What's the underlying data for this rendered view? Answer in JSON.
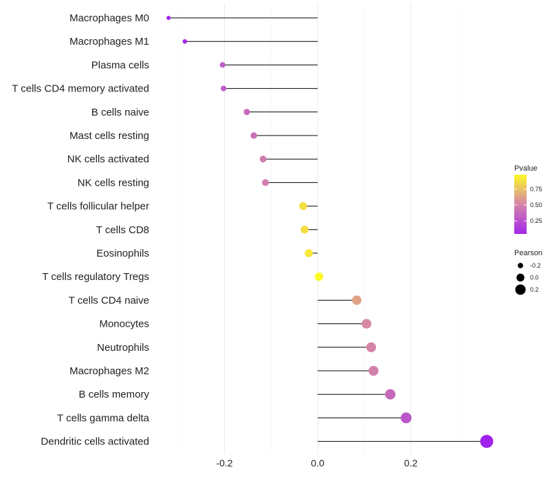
{
  "chart_data": {
    "type": "lollipop",
    "title": "",
    "xlabel": "",
    "ylabel": "",
    "xlim": [
      -0.34,
      0.38
    ],
    "xticks": [
      -0.2,
      0.0,
      0.2
    ],
    "xtick_labels": [
      "-0.2",
      "0.0",
      "0.2"
    ],
    "categories": [
      "Macrophages M0",
      "Macrophages M1",
      "Plasma cells",
      "T cells CD4 memory activated",
      "B cells naive",
      "Mast cells resting",
      "NK cells activated",
      "NK cells resting",
      "T cells follicular helper",
      "T cells CD8",
      "Eosinophils",
      "T cells regulatory  Tregs ",
      "T cells CD4 naive",
      "Monocytes",
      "Neutrophils",
      "Macrophages M2",
      "B cells memory",
      "T cells gamma delta",
      "Dendritic cells activated"
    ],
    "pearson": [
      -0.32,
      -0.285,
      -0.204,
      -0.202,
      -0.152,
      -0.137,
      -0.117,
      -0.112,
      -0.031,
      -0.028,
      -0.019,
      0.003,
      0.084,
      0.105,
      0.115,
      0.12,
      0.156,
      0.19,
      0.363
    ],
    "pvalue": [
      0.01,
      0.06,
      0.3,
      0.3,
      0.36,
      0.4,
      0.45,
      0.46,
      0.87,
      0.87,
      0.9,
      0.98,
      0.62,
      0.52,
      0.49,
      0.48,
      0.36,
      0.26,
      0.01
    ],
    "legend_color": {
      "title": "Pvalue",
      "ticks": [
        0.25,
        0.5,
        0.75
      ],
      "tick_labels": [
        "0.25",
        "0.50",
        "0.75"
      ],
      "colors": [
        "#A020F0",
        "#D585A8",
        "#FFFF20"
      ]
    },
    "legend_size": {
      "title": "Pearson",
      "values": [
        -0.2,
        0.0,
        0.2
      ],
      "labels": [
        "-0.2",
        "0.0",
        "0.2"
      ]
    },
    "legend_position": "right",
    "grid": true
  }
}
